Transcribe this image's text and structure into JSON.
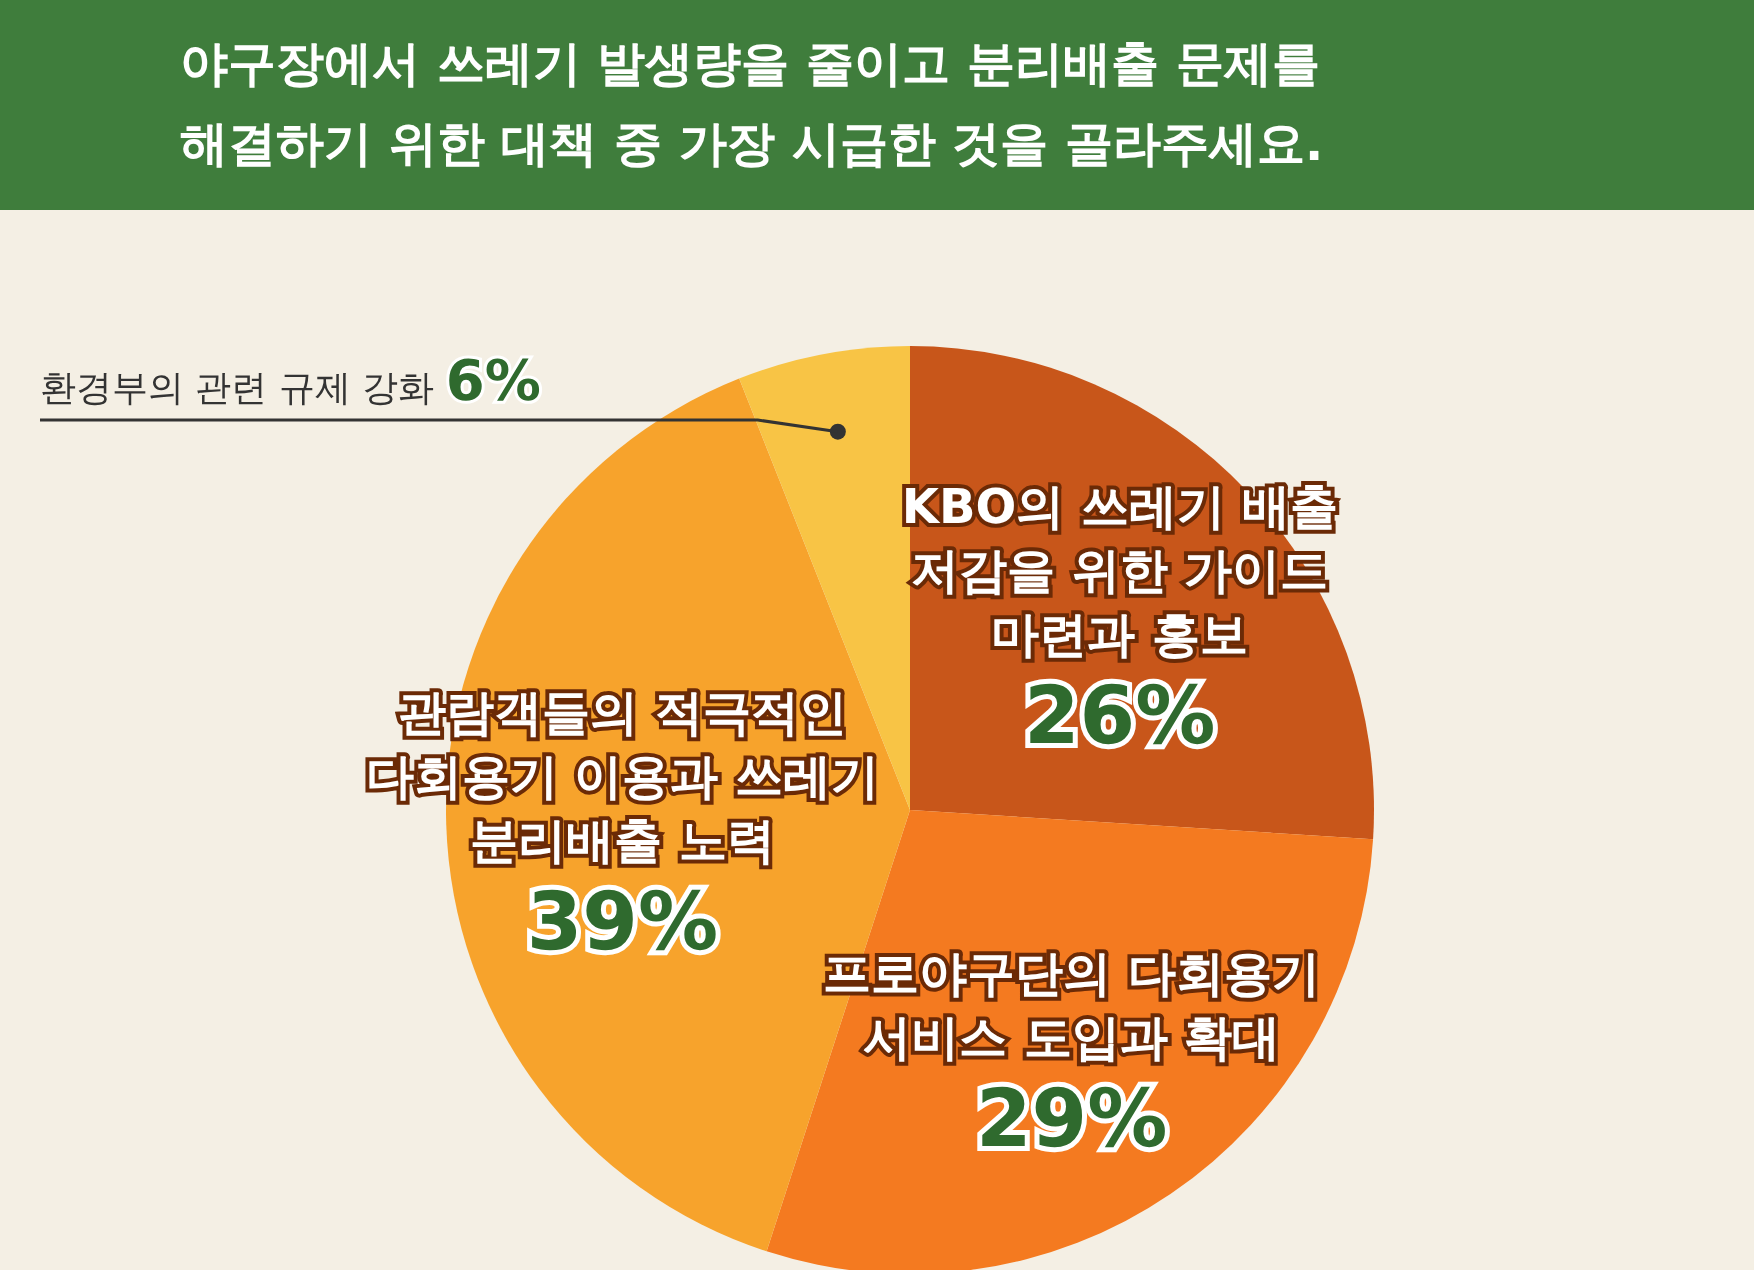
{
  "chart_data": {
    "type": "pie",
    "title": "야구장에서 쓰레기 발생량을 줄이고 분리배출 문제를 해결하기 위한 대책 중 가장 시급한 것을 골라주세요.",
    "categories": [
      "KBO의 쓰레기 배출 저감을 위한 가이드 마련과 홍보",
      "프로야구단의 다회용기 서비스 도입과 확대",
      "관람객들의 적극적인 다회용기 이용과 쓰레기 분리배출 노력",
      "환경부의 관련 규제 강화"
    ],
    "values": [
      26,
      29,
      39,
      6
    ],
    "colors": [
      "#c8561a",
      "#f47a20",
      "#f7a32c",
      "#f8c445"
    ],
    "value_labels": [
      "26%",
      "29%",
      "39%",
      "6%"
    ]
  }
}
